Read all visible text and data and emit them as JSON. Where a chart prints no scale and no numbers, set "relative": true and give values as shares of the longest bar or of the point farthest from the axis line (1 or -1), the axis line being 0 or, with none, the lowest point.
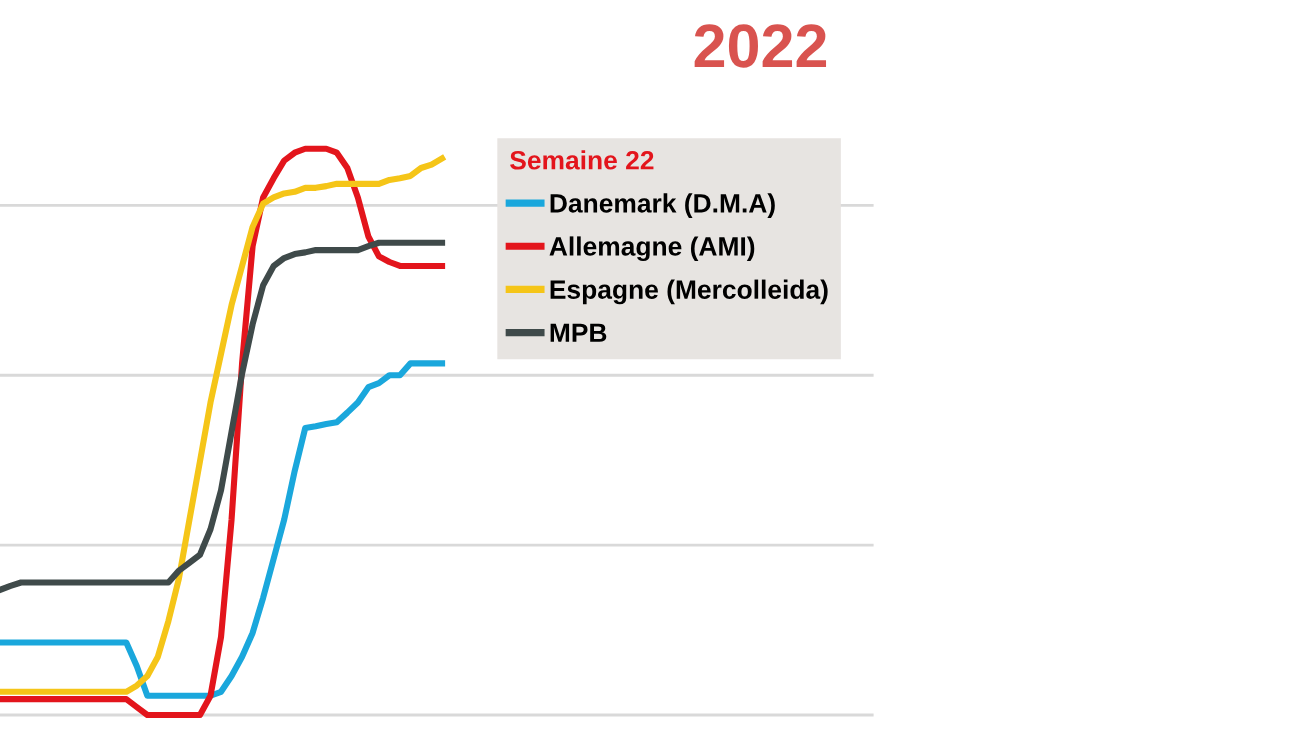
{
  "chart_data": {
    "type": "line",
    "title": "2022",
    "legend_title": "Semaine 22",
    "legend": "top right",
    "relative": true,
    "grid": "y",
    "line_style": "solid",
    "marker": "none",
    "categories": [
      null,
      null,
      null,
      null,
      null,
      null,
      null,
      null,
      null,
      null,
      null,
      null,
      null,
      null,
      null,
      null,
      null,
      null,
      null,
      null,
      null,
      null,
      null,
      null,
      null,
      null,
      null,
      null,
      null,
      null,
      null,
      null,
      null,
      null,
      null,
      null,
      null,
      null,
      null,
      null,
      null,
      null,
      null,
      null,
      null,
      null,
      null,
      null,
      null,
      null,
      null,
      null,
      null,
      null,
      null,
      null,
      null,
      null,
      null,
      null,
      null,
      null,
      null,
      null,
      null,
      null,
      null,
      null,
      null,
      null,
      null,
      null,
      null,
      null,
      null,
      null,
      null,
      null,
      null,
      null,
      null,
      null,
      null,
      null
    ],
    "series": [
      {
        "name": "Danemark (D.M.A)",
        "color": "#1aa7dc",
        "values": [
          0.128,
          0.128,
          0.128,
          0.128,
          0.128,
          0.128,
          0.128,
          0.128,
          0.128,
          0.128,
          0.128,
          0.128,
          0.128,
          0.086,
          0.034,
          0.034,
          0.034,
          0.034,
          0.034,
          0.034,
          0.034,
          0.041,
          0.069,
          0.103,
          0.145,
          0.207,
          0.276,
          0.345,
          0.431,
          0.507,
          0.51,
          0.514,
          0.517,
          0.534,
          0.552,
          0.579,
          0.586,
          0.6,
          0.6,
          0.621,
          0.621,
          0.621,
          0.621,
          null,
          null,
          null,
          null,
          null,
          null,
          null,
          null,
          null,
          null,
          null,
          null,
          null,
          null,
          null,
          null,
          null,
          null,
          null,
          null,
          null,
          null,
          null,
          null,
          null,
          null,
          null,
          null,
          null,
          null,
          null,
          null,
          null,
          null,
          null,
          null,
          null,
          null,
          null,
          null,
          null
        ]
      },
      {
        "name": "Allemagne (AMI)",
        "color": "#e3151c",
        "values": [
          0.028,
          0.028,
          0.028,
          0.028,
          0.028,
          0.028,
          0.028,
          0.028,
          0.028,
          0.028,
          0.028,
          0.028,
          0.028,
          0.014,
          0,
          0,
          0,
          0,
          0,
          0,
          0.034,
          0.138,
          0.345,
          0.621,
          0.828,
          0.914,
          0.948,
          0.979,
          0.993,
          1,
          1,
          1,
          0.993,
          0.966,
          0.914,
          0.845,
          0.81,
          0.8,
          0.793,
          0.793,
          0.793,
          0.793,
          0.793,
          null,
          null,
          null,
          null,
          null,
          null,
          null,
          null,
          null,
          null,
          null,
          null,
          null,
          null,
          null,
          null,
          null,
          null,
          null,
          null,
          null,
          null,
          null,
          null,
          null,
          null,
          null,
          null,
          null,
          null,
          null,
          null,
          null,
          null,
          null,
          null,
          null,
          null,
          null,
          null,
          null
        ]
      },
      {
        "name": "Espagne (Mercolleida)",
        "color": "#f5c518",
        "values": [
          0.041,
          0.041,
          0.041,
          0.041,
          0.041,
          0.041,
          0.041,
          0.041,
          0.041,
          0.041,
          0.041,
          0.041,
          0.041,
          0.052,
          0.069,
          0.103,
          0.166,
          0.241,
          0.345,
          0.448,
          0.552,
          0.638,
          0.724,
          0.793,
          0.862,
          0.903,
          0.914,
          0.921,
          0.924,
          0.931,
          0.931,
          0.934,
          0.938,
          0.938,
          0.938,
          0.938,
          0.938,
          0.945,
          0.948,
          0.952,
          0.966,
          0.972,
          0.983,
          null,
          null,
          null,
          null,
          null,
          null,
          null,
          null,
          null,
          null,
          null,
          null,
          null,
          null,
          null,
          null,
          null,
          null,
          null,
          null,
          null,
          null,
          null,
          null,
          null,
          null,
          null,
          null,
          null,
          null,
          null,
          null,
          null,
          null,
          null,
          null,
          null,
          null,
          null,
          null,
          null
        ]
      },
      {
        "name": "MPB",
        "color": "#3f4a4a",
        "values": [
          0.221,
          0.228,
          0.234,
          0.234,
          0.234,
          0.234,
          0.234,
          0.234,
          0.234,
          0.234,
          0.234,
          0.234,
          0.234,
          0.234,
          0.234,
          0.234,
          0.234,
          0.255,
          0.269,
          0.283,
          0.328,
          0.397,
          0.5,
          0.603,
          0.69,
          0.759,
          0.793,
          0.807,
          0.814,
          0.817,
          0.821,
          0.821,
          0.821,
          0.821,
          0.821,
          0.828,
          0.834,
          0.834,
          0.834,
          0.834,
          0.834,
          0.834,
          0.834,
          null,
          null,
          null,
          null,
          null,
          null,
          null,
          null,
          null,
          null,
          null,
          null,
          null,
          null,
          null,
          null,
          null,
          null,
          null,
          null,
          null,
          null,
          null,
          null,
          null,
          null,
          null,
          null,
          null,
          null,
          null,
          null,
          null,
          null,
          null,
          null,
          null,
          null,
          null,
          null,
          null
        ]
      }
    ]
  }
}
